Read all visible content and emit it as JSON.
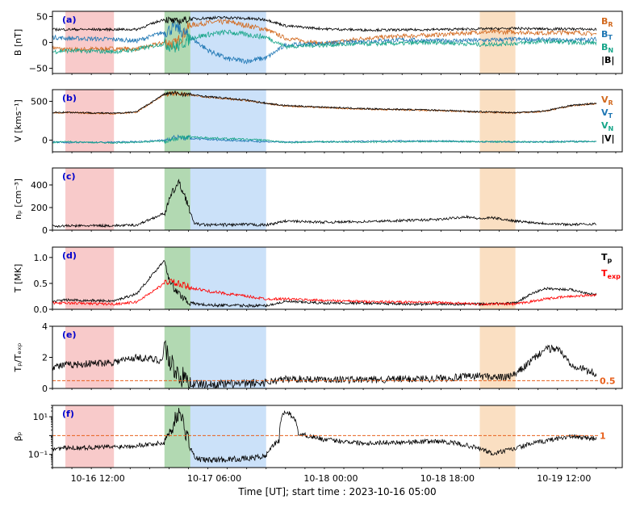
{
  "figure": {
    "xlabel": "Time [UT]; start time : 2023-10-16 05:00",
    "x_tick_labels": [
      "10-16 12:00",
      "10-17 06:00",
      "10-18 00:00",
      "10-18 18:00",
      "10-19 12:00"
    ],
    "x_tick_hours": [
      7,
      25,
      43,
      61,
      79
    ],
    "x_range_hours": [
      0,
      88
    ],
    "x_minor_step_hours": 3,
    "shaded_regions": [
      {
        "name": "red",
        "start": 2.0,
        "end": 9.5,
        "color": "#f4a6a6"
      },
      {
        "name": "green",
        "start": 17.3,
        "end": 21.3,
        "color": "#7fbf7f"
      },
      {
        "name": "blue",
        "start": 21.3,
        "end": 33.0,
        "color": "#a9cdf5"
      },
      {
        "name": "orange",
        "start": 66.0,
        "end": 71.5,
        "color": "#f6c99a"
      }
    ]
  },
  "chart_data": [
    {
      "type": "line",
      "panel_label": "(a)",
      "ylabel": "B [nT]",
      "ylim": [
        -60,
        60
      ],
      "yscale": "linear",
      "yticks": [
        -50,
        0,
        50
      ],
      "ytick_labels": [
        "−50",
        "0",
        "50"
      ],
      "legend": [
        "BR",
        "BT",
        "BN",
        "|B|"
      ],
      "series": [
        {
          "name": "BR",
          "color": "#d2691e",
          "x": [
            0,
            2,
            9.5,
            13,
            17.3,
            19,
            21.3,
            24,
            27,
            33,
            36,
            42,
            48,
            54,
            60,
            66,
            71.5,
            76,
            80,
            84
          ],
          "y": [
            -10,
            -14,
            -12,
            -13,
            0,
            -4,
            33,
            38,
            40,
            25,
            8,
            -3,
            8,
            12,
            15,
            20,
            20,
            18,
            20,
            16
          ]
        },
        {
          "name": "BT",
          "color": "#1f77b4",
          "x": [
            0,
            2,
            9.5,
            13,
            17.3,
            19,
            21.3,
            24,
            27,
            30,
            33,
            36,
            42,
            48,
            54,
            60,
            66,
            71.5,
            76,
            80,
            84
          ],
          "y": [
            10,
            8,
            6,
            3,
            20,
            30,
            10,
            -15,
            -32,
            -36,
            -30,
            -5,
            -2,
            2,
            5,
            3,
            4,
            6,
            5,
            4,
            6
          ]
        },
        {
          "name": "BN",
          "color": "#17a589",
          "x": [
            0,
            2,
            9.5,
            13,
            17.3,
            19,
            21.3,
            24,
            27,
            30,
            33,
            36,
            42,
            48,
            54,
            60,
            66,
            71.5,
            76,
            80,
            84
          ],
          "y": [
            -18,
            -16,
            -18,
            -14,
            -2,
            -10,
            8,
            15,
            20,
            15,
            10,
            -8,
            -5,
            -3,
            -2,
            0,
            -4,
            -2,
            2,
            0,
            -1
          ]
        },
        {
          "name": "|B|",
          "color": "#000000",
          "x": [
            0,
            2,
            9.5,
            13,
            17.3,
            19,
            21.3,
            24,
            27,
            30,
            33,
            36,
            42,
            48,
            54,
            60,
            66,
            71.5,
            76,
            80,
            84
          ],
          "y": [
            25,
            25,
            25,
            25,
            45,
            40,
            45,
            47,
            48,
            46,
            44,
            32,
            26,
            24,
            24,
            25,
            26,
            27,
            26,
            26,
            25
          ]
        }
      ]
    },
    {
      "type": "line",
      "panel_label": "(b)",
      "ylabel": "V [kms⁻¹]",
      "ylim": [
        -150,
        650
      ],
      "yscale": "linear",
      "yticks": [
        0,
        500
      ],
      "ytick_labels": [
        "0",
        "500"
      ],
      "legend": [
        "VR",
        "VT",
        "VN",
        "|V|"
      ],
      "series": [
        {
          "name": "VR",
          "color": "#d2691e",
          "x": [
            0,
            2,
            9.5,
            13,
            17.3,
            19,
            21.3,
            24,
            30,
            33,
            36,
            42,
            48,
            54,
            60,
            66,
            71.5,
            76,
            80,
            84
          ],
          "y": [
            350,
            355,
            340,
            360,
            590,
            600,
            580,
            555,
            510,
            470,
            440,
            420,
            400,
            390,
            380,
            360,
            350,
            370,
            440,
            470
          ]
        },
        {
          "name": "VT",
          "color": "#1f77b4",
          "x": [
            0,
            2,
            9.5,
            13,
            17.3,
            19,
            21.3,
            24,
            30,
            33,
            36,
            42,
            48,
            54,
            60,
            66,
            71.5,
            76,
            80,
            84
          ],
          "y": [
            -20,
            -30,
            -25,
            -20,
            0,
            40,
            20,
            10,
            -10,
            -20,
            -25,
            -20,
            -15,
            -10,
            -12,
            -20,
            -25,
            -20,
            -15,
            -20
          ]
        },
        {
          "name": "VN",
          "color": "#17a589",
          "x": [
            0,
            2,
            9.5,
            13,
            17.3,
            19,
            21.3,
            24,
            30,
            33,
            36,
            42,
            48,
            54,
            60,
            66,
            71.5,
            76,
            80,
            84
          ],
          "y": [
            -30,
            -20,
            -35,
            -25,
            -10,
            20,
            40,
            30,
            10,
            0,
            -30,
            -20,
            -25,
            -20,
            -15,
            -20,
            -20,
            -25,
            -20,
            -15
          ]
        },
        {
          "name": "|V|",
          "color": "#000000",
          "x": [
            0,
            2,
            9.5,
            13,
            17.3,
            19,
            21.3,
            24,
            30,
            33,
            36,
            42,
            48,
            54,
            60,
            66,
            71.5,
            76,
            80,
            84
          ],
          "y": [
            355,
            360,
            345,
            365,
            595,
            605,
            585,
            560,
            515,
            475,
            445,
            425,
            405,
            395,
            385,
            365,
            355,
            375,
            445,
            475
          ]
        }
      ]
    },
    {
      "type": "line",
      "panel_label": "(c)",
      "ylabel": "nₚ [cm⁻³]",
      "ylim": [
        0,
        550
      ],
      "yscale": "linear",
      "yticks": [
        0,
        200,
        400
      ],
      "ytick_labels": [
        "0",
        "200",
        "400"
      ],
      "legend": [],
      "series": [
        {
          "name": "np",
          "color": "#000000",
          "x": [
            0,
            2,
            9.5,
            13,
            17.3,
            18.5,
            19.5,
            20.5,
            21.3,
            22,
            24,
            30,
            33,
            36,
            42,
            48,
            54,
            60,
            64,
            66,
            68,
            71.5,
            76,
            80,
            84
          ],
          "y": [
            35,
            38,
            40,
            45,
            150,
            330,
            420,
            300,
            150,
            55,
            45,
            50,
            45,
            80,
            70,
            75,
            85,
            95,
            120,
            100,
            110,
            80,
            60,
            50,
            55
          ]
        }
      ]
    },
    {
      "type": "line",
      "panel_label": "(d)",
      "ylabel": "T [MK]",
      "ylim": [
        0,
        1.2
      ],
      "yscale": "linear",
      "yticks": [
        0.0,
        0.5,
        1.0
      ],
      "ytick_labels": [
        "0.0",
        "0.5",
        "1.0"
      ],
      "legend": [
        "Tp",
        "Texp"
      ],
      "series": [
        {
          "name": "Tp",
          "color": "#000000",
          "x": [
            0,
            2,
            9.5,
            13,
            17.3,
            18,
            19,
            21.3,
            24,
            30,
            33,
            36,
            42,
            48,
            54,
            60,
            66,
            71.5,
            74,
            76,
            80,
            84
          ],
          "y": [
            0.15,
            0.18,
            0.16,
            0.3,
            0.95,
            0.6,
            0.35,
            0.12,
            0.08,
            0.07,
            0.07,
            0.15,
            0.12,
            0.12,
            0.1,
            0.1,
            0.1,
            0.12,
            0.3,
            0.4,
            0.38,
            0.28
          ]
        },
        {
          "name": "Texp",
          "color": "#ff0000",
          "x": [
            0,
            2,
            9.5,
            13,
            17.3,
            18,
            19,
            21.3,
            24,
            30,
            33,
            36,
            42,
            48,
            54,
            60,
            66,
            71.5,
            74,
            76,
            80,
            84
          ],
          "y": [
            0.12,
            0.12,
            0.1,
            0.14,
            0.5,
            0.55,
            0.5,
            0.42,
            0.35,
            0.25,
            0.2,
            0.2,
            0.17,
            0.15,
            0.14,
            0.13,
            0.1,
            0.1,
            0.15,
            0.2,
            0.25,
            0.28
          ]
        }
      ]
    },
    {
      "type": "line",
      "panel_label": "(e)",
      "ylabel": "Tₚ/Tₑₓₚ",
      "ylim": [
        0,
        4
      ],
      "yscale": "linear",
      "yticks": [
        0,
        2,
        4
      ],
      "ytick_labels": [
        "0",
        "2",
        "4"
      ],
      "legend": [],
      "reference_line": {
        "y": 0.5,
        "label": "0.5",
        "color": "#e8601c"
      },
      "series": [
        {
          "name": "Tp/Texp",
          "color": "#000000",
          "x": [
            0,
            2,
            6,
            9.5,
            13,
            17,
            17.3,
            18,
            19.5,
            21,
            21.3,
            24,
            30,
            33,
            36,
            42,
            48,
            54,
            60,
            66,
            70,
            71.5,
            74,
            76,
            78,
            80,
            84
          ],
          "y": [
            1.4,
            1.5,
            1.6,
            1.7,
            2.0,
            1.8,
            3.0,
            1.8,
            0.9,
            0.4,
            0.3,
            0.25,
            0.3,
            0.4,
            0.6,
            0.6,
            0.55,
            0.6,
            0.65,
            0.8,
            0.7,
            0.9,
            1.8,
            2.5,
            2.6,
            1.6,
            0.9
          ]
        }
      ]
    },
    {
      "type": "line",
      "panel_label": "(f)",
      "ylabel": "βₚ",
      "ylim": [
        0.02,
        40
      ],
      "yscale": "log",
      "yticks": [
        0.1,
        10
      ],
      "ytick_labels": [
        "10⁻¹",
        "10¹"
      ],
      "legend": [],
      "reference_line": {
        "y": 1,
        "label": "1",
        "color": "#e8601c"
      },
      "series": [
        {
          "name": "beta_p",
          "color": "#000000",
          "x": [
            0,
            2,
            9.5,
            13,
            17.3,
            18.5,
            19.5,
            20.5,
            21.3,
            22,
            24,
            30,
            33,
            35,
            36,
            38,
            42,
            48,
            54,
            60,
            66,
            68,
            71.5,
            76,
            80,
            84
          ],
          "y": [
            0.2,
            0.22,
            0.25,
            0.3,
            0.4,
            2,
            15,
            1.5,
            0.2,
            0.06,
            0.05,
            0.06,
            0.08,
            0.5,
            20,
            1.2,
            0.6,
            0.4,
            0.45,
            0.5,
            0.2,
            0.1,
            0.2,
            0.5,
            0.9,
            0.7
          ]
        }
      ]
    }
  ]
}
